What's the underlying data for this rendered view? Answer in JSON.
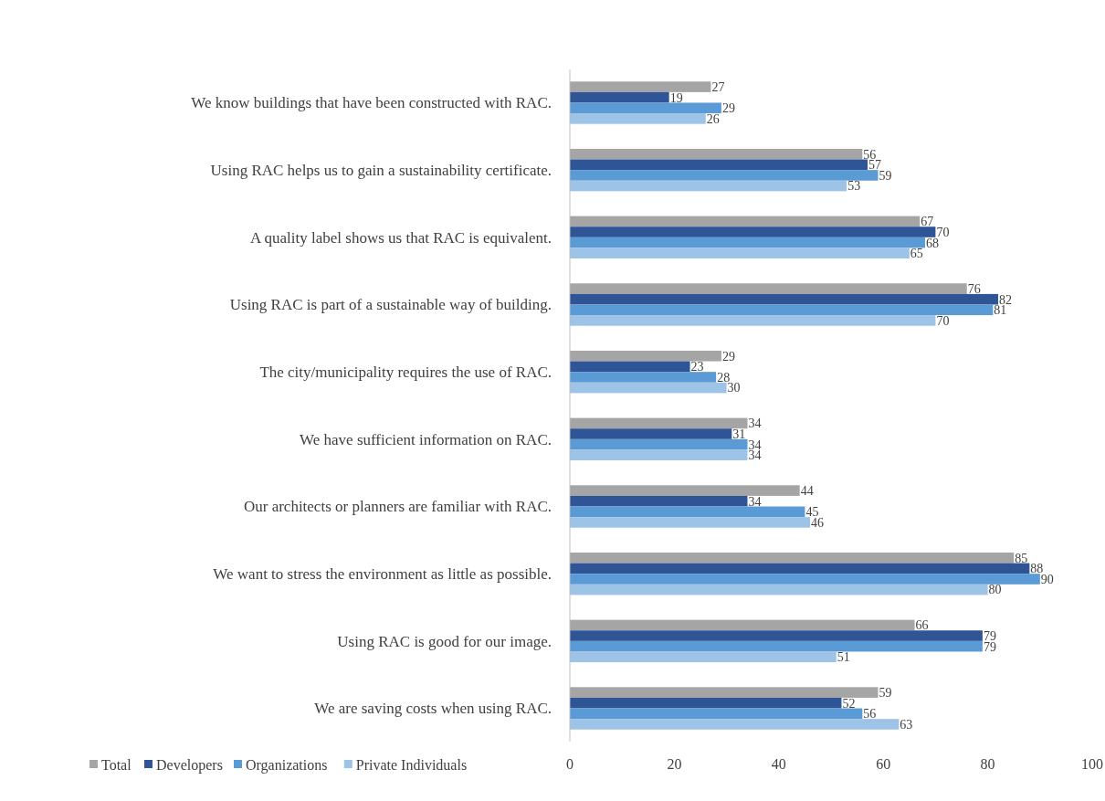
{
  "chart_data": {
    "type": "bar",
    "orientation": "horizontal",
    "categories": [
      "We know buildings that have been constructed with RAC.",
      "Using RAC helps us to gain a sustainability certificate.",
      "A quality label shows us that RAC is equivalent.",
      "Using RAC is part of a sustainable way of building.",
      "The city/municipality requires the use of RAC.",
      "We have sufficient information on RAC.",
      "Our architects or planners are familiar with RAC.",
      "We want to stress the environment as little as possible.",
      "Using RAC is good for our image.",
      "We are saving costs when using RAC."
    ],
    "series": [
      {
        "name": "Total",
        "color": "#a5a5a5",
        "values": [
          27,
          56,
          67,
          76,
          29,
          34,
          44,
          85,
          66,
          59
        ]
      },
      {
        "name": "Developers",
        "color": "#2f5597",
        "values": [
          19,
          57,
          70,
          82,
          23,
          31,
          34,
          88,
          79,
          52
        ]
      },
      {
        "name": "Organizations",
        "color": "#5b9bd5",
        "values": [
          29,
          59,
          68,
          81,
          28,
          34,
          45,
          90,
          79,
          56
        ]
      },
      {
        "name": "Private Individuals",
        "color": "#9dc3e6",
        "values": [
          26,
          53,
          65,
          70,
          30,
          34,
          46,
          80,
          51,
          63
        ]
      }
    ],
    "xlim": [
      0,
      100
    ],
    "xticks": [
      0,
      20,
      40,
      60,
      80,
      100
    ],
    "data_labels": true,
    "grid": false,
    "legend": "bottom left"
  }
}
